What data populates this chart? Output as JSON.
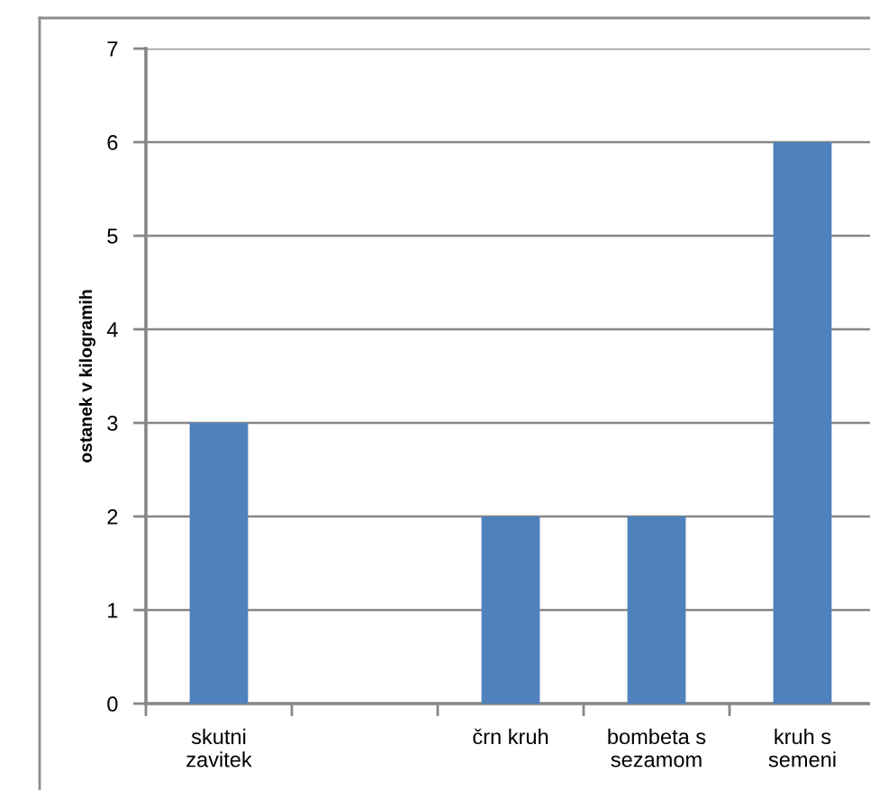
{
  "chart_data": {
    "type": "bar",
    "ylabel": "ostanek v kilogramih",
    "categories": [
      "skutni zavitek",
      null,
      "črn kruh",
      "bombeta s sezamom",
      "kruh s semeni"
    ],
    "values": [
      3,
      null,
      2,
      2,
      6
    ],
    "color": "#4f81bd",
    "ylim": [
      0,
      7
    ],
    "yticks": [
      0,
      1,
      2,
      3,
      4,
      5,
      6,
      7
    ],
    "grid": "y"
  }
}
